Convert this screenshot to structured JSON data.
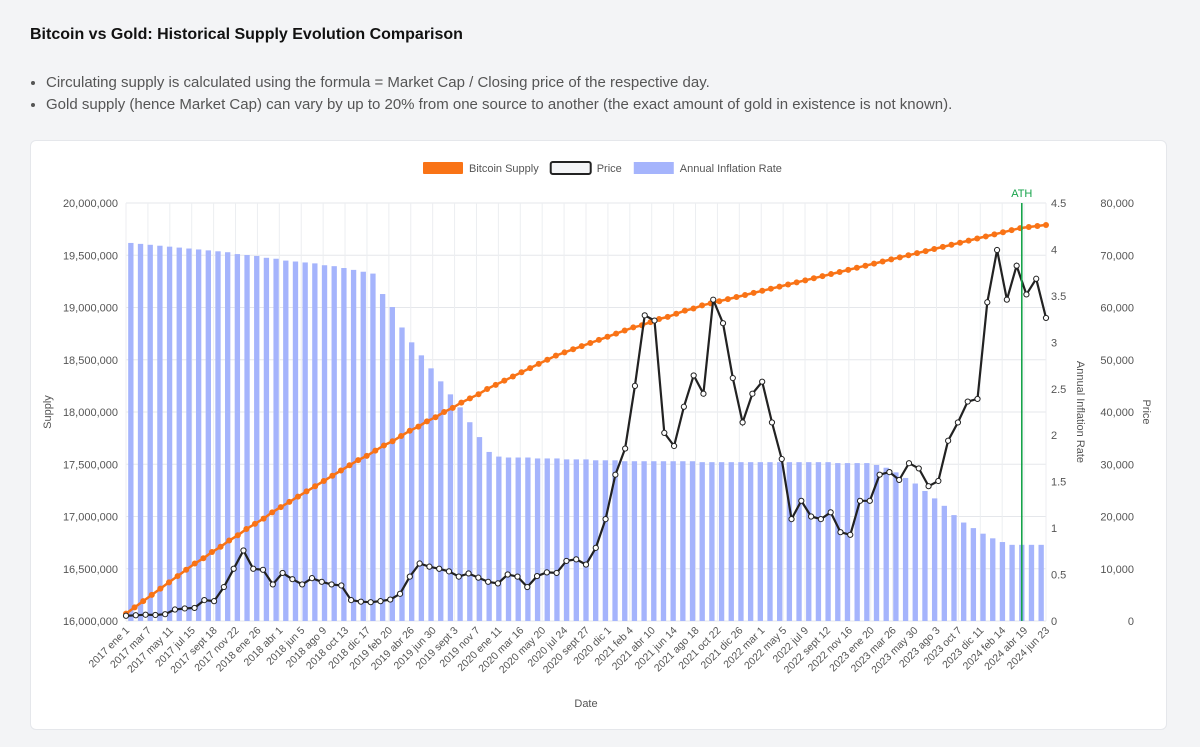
{
  "page": {
    "title": "Bitcoin vs Gold: Historical Supply Evolution Comparison",
    "notes": [
      "Circulating supply is calculated using the formula = Market Cap / Closing price of the respective day.",
      "Gold supply (hence Market Cap) can vary by up to 20% from one source to another (the exact amount of gold in existence is not known)."
    ]
  },
  "chart_data": {
    "type": "line",
    "xlabel": "Date",
    "y_left_label": "Supply",
    "y_inflation_label": "Annual Inflation Rate",
    "y_price_label": "Price",
    "supply_ticks": [
      "16,000,000",
      "16,500,000",
      "17,000,000",
      "17,500,000",
      "18,000,000",
      "18,500,000",
      "19,000,000",
      "19,500,000",
      "20,000,000"
    ],
    "inflation_ticks": [
      "0",
      "0.5",
      "1",
      "1.5",
      "2",
      "2.5",
      "3",
      "3.5",
      "4",
      "4.5"
    ],
    "price_ticks": [
      "0",
      "10,000",
      "20,000",
      "30,000",
      "40,000",
      "50,000",
      "60,000",
      "70,000",
      "80,000"
    ],
    "supply_range": [
      16000000,
      20000000
    ],
    "inflation_range": [
      0,
      4.5
    ],
    "price_range": [
      0,
      80000
    ],
    "x_tick_labels": [
      "2017 ene 1",
      "2017 mar 7",
      "2017 may 11",
      "2017 jul 15",
      "2017 sept 18",
      "2017 nov 22",
      "2018 ene 26",
      "2018 abr 1",
      "2018 jun 5",
      "2018 ago 9",
      "2018 oct 13",
      "2018 dic 17",
      "2019 feb 20",
      "2019 abr 26",
      "2019 jun 30",
      "2019 sept 3",
      "2019 nov 7",
      "2020 ene 11",
      "2020 mar 16",
      "2020 may 20",
      "2020 jul 24",
      "2020 sept 27",
      "2020 dic 1",
      "2021 feb 4",
      "2021 abr 10",
      "2021 jun 14",
      "2021 ago 18",
      "2021 oct 22",
      "2021 dic 26",
      "2022 mar 1",
      "2022 may 5",
      "2022 jul 9",
      "2022 sept 12",
      "2022 nov 16",
      "2023 ene 20",
      "2023 mar 26",
      "2023 may 30",
      "2023 ago 3",
      "2023 oct 7",
      "2023 dic 11",
      "2024 feb 14",
      "2024 abr 19",
      "2024 jun 23"
    ],
    "series": [
      {
        "name": "Bitcoin Supply",
        "color": "#f97316",
        "axis": "supply",
        "style": "line",
        "values": [
          16070000,
          16130000,
          16190000,
          16250000,
          16310000,
          16370000,
          16430000,
          16490000,
          16550000,
          16600000,
          16660000,
          16710000,
          16770000,
          16820000,
          16880000,
          16930000,
          16980000,
          17040000,
          17090000,
          17140000,
          17190000,
          17240000,
          17290000,
          17340000,
          17390000,
          17440000,
          17490000,
          17540000,
          17580000,
          17630000,
          17680000,
          17720000,
          17770000,
          17820000,
          17860000,
          17910000,
          17950000,
          18000000,
          18040000,
          18090000,
          18130000,
          18170000,
          18220000,
          18260000,
          18300000,
          18340000,
          18380000,
          18420000,
          18460000,
          18500000,
          18540000,
          18570000,
          18600000,
          18630000,
          18660000,
          18690000,
          18720000,
          18750000,
          18780000,
          18810000,
          18830000,
          18860000,
          18890000,
          18910000,
          18940000,
          18970000,
          18990000,
          19020000,
          19040000,
          19060000,
          19080000,
          19100000,
          19120000,
          19140000,
          19160000,
          19180000,
          19200000,
          19220000,
          19240000,
          19260000,
          19280000,
          19300000,
          19320000,
          19340000,
          19360000,
          19380000,
          19400000,
          19420000,
          19440000,
          19460000,
          19480000,
          19500000,
          19520000,
          19540000,
          19560000,
          19580000,
          19600000,
          19620000,
          19640000,
          19660000,
          19680000,
          19700000,
          19720000,
          19740000,
          19760000,
          19770000,
          19780000,
          19790000
        ]
      },
      {
        "name": "Price",
        "color": "#222222",
        "axis": "price",
        "style": "line",
        "values": [
          1000,
          1100,
          1200,
          1150,
          1300,
          2200,
          2400,
          2500,
          4000,
          3800,
          6500,
          10000,
          13500,
          10000,
          9800,
          7000,
          9200,
          8000,
          7000,
          8200,
          7500,
          7000,
          6800,
          4000,
          3700,
          3600,
          3800,
          4100,
          5200,
          8500,
          11000,
          10400,
          10000,
          9500,
          8500,
          9100,
          8300,
          7500,
          7200,
          8900,
          8500,
          6500,
          8600,
          9300,
          9200,
          11500,
          11800,
          10800,
          14000,
          19500,
          28000,
          33000,
          45000,
          58500,
          57500,
          36000,
          33500,
          41000,
          47000,
          43500,
          61500,
          57000,
          46500,
          38000,
          43500,
          45800,
          38000,
          31000,
          19500,
          23000,
          20000,
          19500,
          20800,
          17000,
          16500,
          23000,
          23000,
          28000,
          28500,
          27000,
          30200,
          29200,
          25800,
          26800,
          34500,
          38000,
          42000,
          42500,
          61000,
          71000,
          61500,
          68000,
          62500,
          65500,
          58000
        ]
      },
      {
        "name": "Annual Inflation Rate",
        "color": "#a5b4fc",
        "axis": "inflation",
        "style": "bar",
        "values": [
          4.07,
          4.06,
          4.05,
          4.04,
          4.03,
          4.02,
          4.01,
          4.0,
          3.99,
          3.98,
          3.97,
          3.95,
          3.94,
          3.93,
          3.91,
          3.9,
          3.88,
          3.87,
          3.86,
          3.85,
          3.83,
          3.82,
          3.8,
          3.78,
          3.76,
          3.74,
          3.52,
          3.38,
          3.16,
          3.0,
          2.86,
          2.72,
          2.58,
          2.44,
          2.3,
          2.14,
          1.98,
          1.82,
          1.77,
          1.76,
          1.76,
          1.76,
          1.75,
          1.75,
          1.75,
          1.74,
          1.74,
          1.74,
          1.73,
          1.73,
          1.73,
          1.72,
          1.72,
          1.72,
          1.72,
          1.72,
          1.72,
          1.72,
          1.72,
          1.71,
          1.71,
          1.71,
          1.71,
          1.71,
          1.71,
          1.71,
          1.71,
          1.71,
          1.71,
          1.71,
          1.71,
          1.71,
          1.71,
          1.7,
          1.7,
          1.7,
          1.7,
          1.68,
          1.65,
          1.6,
          1.54,
          1.48,
          1.4,
          1.32,
          1.24,
          1.14,
          1.06,
          1.0,
          0.94,
          0.89,
          0.85,
          0.82,
          0.82,
          0.82,
          0.82
        ]
      }
    ],
    "annotations": [
      {
        "label": "ATH",
        "color": "#16a34a",
        "bar_index": 92
      }
    ],
    "legend": "top-center",
    "grid": true
  }
}
